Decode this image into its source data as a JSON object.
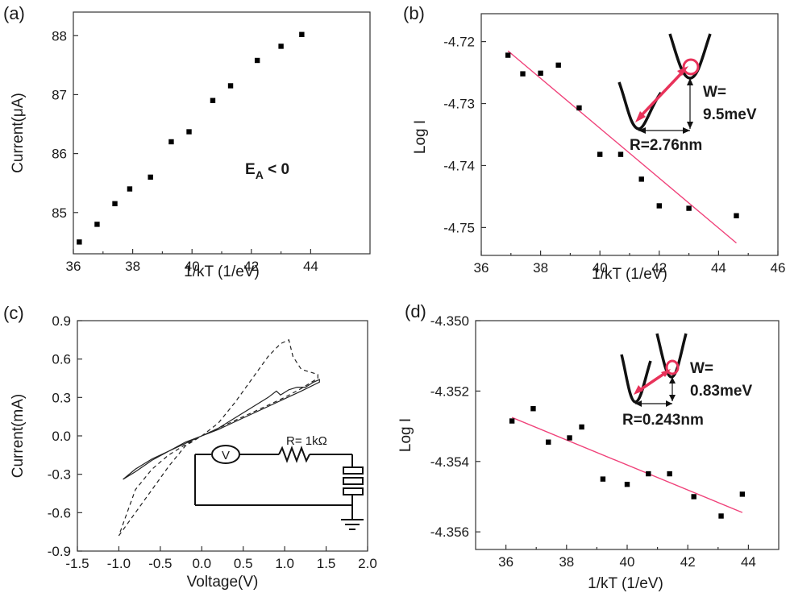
{
  "chart_data": [
    {
      "panel": "(a)",
      "type": "scatter",
      "xlabel": "1/kT (1/eV)",
      "ylabel": "Current(μA)",
      "xlim": [
        36,
        46
      ],
      "ylim": [
        84.3,
        88.4
      ],
      "xticks": [
        "36",
        "38",
        "40",
        "42",
        "44"
      ],
      "yticks": [
        "85",
        "86",
        "87",
        "88"
      ],
      "annotation": {
        "main": "E",
        "sub": "A",
        "rest": " < 0"
      },
      "series": [
        {
          "marker": "square",
          "color": "#000000",
          "x": [
            36.2,
            36.8,
            37.4,
            37.9,
            38.6,
            39.3,
            39.9,
            40.7,
            41.3,
            42.2,
            43.0,
            43.7
          ],
          "y": [
            84.5,
            84.8,
            85.15,
            85.4,
            85.6,
            86.2,
            86.37,
            86.9,
            87.15,
            87.58,
            87.82,
            88.02
          ]
        }
      ]
    },
    {
      "panel": "(b)",
      "type": "scatter",
      "xlabel": "1/kT (1/eV)",
      "ylabel": "Log I",
      "xlim": [
        36,
        46
      ],
      "ylim": [
        -4.7545,
        -4.7155
      ],
      "xticks": [
        "36",
        "38",
        "40",
        "42",
        "44",
        "46"
      ],
      "yticks": [
        "-4.72",
        "-4.73",
        "-4.74",
        "-4.75"
      ],
      "inset": {
        "w_label_1": "W=",
        "w_label_2": "9.5meV",
        "r_label": "R=2.76nm",
        "arrow_color": "#e8325a"
      },
      "series": [
        {
          "marker": "square",
          "color": "#000000",
          "x": [
            36.9,
            37.4,
            38.0,
            38.6,
            39.3,
            40.0,
            40.7,
            41.4,
            42.0,
            43.0,
            44.6
          ],
          "y": [
            -4.7222,
            -4.7252,
            -4.7251,
            -4.7238,
            -4.7307,
            -4.7382,
            -4.7382,
            -4.7422,
            -4.7465,
            -4.7469,
            -4.7481
          ]
        },
        {
          "type": "line",
          "color": "#f0427a",
          "x": [
            36.9,
            44.6
          ],
          "y": [
            -4.7215,
            -4.7525
          ]
        }
      ]
    },
    {
      "panel": "(c)",
      "type": "line",
      "xlabel": "Voltage(V)",
      "ylabel": "Current(mA)",
      "xlim": [
        -1.5,
        2.0
      ],
      "ylim": [
        -0.9,
        0.9
      ],
      "xticks": [
        "-1.5",
        "-1.0",
        "-0.5",
        "0.0",
        "0.5",
        "1.0",
        "1.5",
        "2.0"
      ],
      "yticks": [
        "0.9",
        "0.6",
        "0.3",
        "0.0",
        "-0.3",
        "-0.6",
        "-0.9"
      ],
      "inset": {
        "resistor_label": "R= 1kΩ",
        "meter_label": "V"
      },
      "series": [
        {
          "style": "dashed",
          "x": [
            -1.0,
            -0.8,
            -0.6,
            -0.4,
            -0.2,
            0.0,
            0.2,
            0.4,
            0.6,
            0.8,
            0.95,
            1.05,
            1.1,
            1.2,
            1.3,
            1.4,
            1.4,
            1.2,
            1.0,
            0.8,
            0.6,
            0.4,
            0.2,
            0.0,
            -0.2,
            -0.4,
            -0.6,
            -0.8,
            -1.0
          ],
          "y": [
            -0.78,
            -0.6,
            -0.42,
            -0.24,
            -0.08,
            0.0,
            0.1,
            0.26,
            0.44,
            0.62,
            0.72,
            0.75,
            0.62,
            0.52,
            0.5,
            0.48,
            0.45,
            0.37,
            0.3,
            0.24,
            0.18,
            0.12,
            0.06,
            0.0,
            -0.07,
            -0.15,
            -0.26,
            -0.42,
            -0.78
          ]
        },
        {
          "style": "solid",
          "x": [
            -0.95,
            -0.8,
            -0.6,
            -0.4,
            -0.2,
            0.0,
            0.2,
            0.4,
            0.6,
            0.8,
            0.9,
            0.95,
            1.05,
            1.15,
            1.25,
            1.35,
            1.42,
            1.42,
            1.2,
            1.0,
            0.8,
            0.6,
            0.4,
            0.2,
            0.0,
            -0.2,
            -0.4,
            -0.6,
            -0.8,
            -0.95
          ],
          "y": [
            -0.34,
            -0.28,
            -0.19,
            -0.12,
            -0.05,
            0.0,
            0.06,
            0.14,
            0.22,
            0.3,
            0.35,
            0.32,
            0.36,
            0.38,
            0.38,
            0.42,
            0.44,
            0.42,
            0.35,
            0.29,
            0.23,
            0.17,
            0.11,
            0.05,
            0.0,
            -0.06,
            -0.12,
            -0.18,
            -0.26,
            -0.34
          ]
        }
      ]
    },
    {
      "panel": "(d)",
      "type": "scatter",
      "xlabel": "1/kT (1/eV)",
      "ylabel": "Log I",
      "xlim": [
        35,
        45
      ],
      "ylim": [
        -4.3565,
        -4.35
      ],
      "xticks": [
        "36",
        "38",
        "40",
        "42",
        "44"
      ],
      "yticks": [
        "-4.350",
        "-4.352",
        "-4.354",
        "-4.356"
      ],
      "inset": {
        "w_label_1": "W=",
        "w_label_2": "0.83meV",
        "r_label": "R=0.243nm",
        "arrow_color": "#e8325a"
      },
      "series": [
        {
          "marker": "square",
          "color": "#000000",
          "x": [
            36.2,
            36.9,
            37.4,
            38.1,
            38.5,
            39.2,
            40.0,
            40.7,
            41.4,
            42.2,
            43.1,
            43.8
          ],
          "y": [
            -4.35285,
            -4.3525,
            -4.35345,
            -4.35333,
            -4.35302,
            -4.3545,
            -4.35465,
            -4.35435,
            -4.35435,
            -4.355,
            -4.35555,
            -4.35493
          ]
        },
        {
          "type": "line",
          "color": "#f0427a",
          "x": [
            36.2,
            43.8
          ],
          "y": [
            -4.35275,
            -4.35545
          ]
        }
      ]
    }
  ],
  "panel_labels": [
    "(a)",
    "(b)",
    "(c)",
    "(d)"
  ]
}
